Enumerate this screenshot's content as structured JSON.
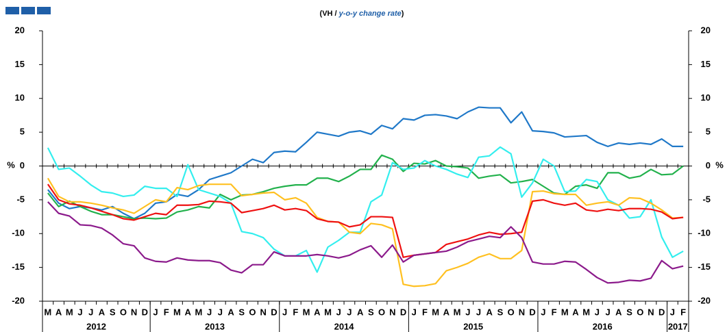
{
  "chart_data": {
    "type": "line",
    "title_parts": [
      "(VH / ",
      "y-o-y change rate",
      ")"
    ],
    "ylabel": "%",
    "y2label": "%",
    "category_groups": [
      {
        "label": "2012",
        "categories": [
          "M",
          "A",
          "M",
          "J",
          "J",
          "A",
          "S",
          "O",
          "N",
          "D"
        ]
      },
      {
        "label": "2013",
        "categories": [
          "J",
          "F",
          "M",
          "A",
          "M",
          "J",
          "J",
          "A",
          "S",
          "O",
          "N",
          "D"
        ]
      },
      {
        "label": "2014",
        "categories": [
          "J",
          "F",
          "M",
          "A",
          "M",
          "J",
          "J",
          "A",
          "S",
          "O",
          "N",
          "D"
        ]
      },
      {
        "label": "2015",
        "categories": [
          "J",
          "F",
          "M",
          "A",
          "M",
          "J",
          "J",
          "A",
          "S",
          "O",
          "N",
          "D"
        ]
      },
      {
        "label": "2016",
        "categories": [
          "J",
          "F",
          "M",
          "A",
          "M",
          "J",
          "J",
          "A",
          "S",
          "O",
          "N",
          "D"
        ]
      },
      {
        "label": "2017",
        "categories": [
          "J",
          "F"
        ]
      }
    ],
    "ylim": [
      -20,
      20
    ],
    "yticks": [
      -20,
      -15,
      -10,
      -5,
      0,
      5,
      10,
      15,
      20
    ],
    "y2lim": [
      -20,
      20
    ],
    "y2ticks": [
      -20,
      -15,
      -10,
      -5,
      0,
      5,
      10,
      15,
      20
    ],
    "series": [
      {
        "color": "#1f78c8",
        "values": [
          -3.5,
          -5.5,
          -6.3,
          -6.0,
          -6.2,
          -6.5,
          -6.0,
          -7.0,
          -7.8,
          -7.0,
          -5.5,
          -5.3,
          -4.2,
          -4.5,
          -3.5,
          -2.0,
          -1.5,
          -1.0,
          0.0,
          1.0,
          0.5,
          2.0,
          2.2,
          2.1,
          3.5,
          5.0,
          4.7,
          4.4,
          5.0,
          5.2,
          4.7,
          6.0,
          5.5,
          7.0,
          6.8,
          7.5,
          7.6,
          7.4,
          7.0,
          8.0,
          8.7,
          8.6,
          8.6,
          6.4,
          8.0,
          5.2,
          5.1,
          4.9,
          4.3,
          4.4,
          4.5,
          3.5,
          2.9,
          3.4,
          3.2,
          3.4,
          3.2,
          4.0,
          2.9,
          2.9
        ]
      },
      {
        "color": "#22b14c",
        "values": [
          -4.0,
          -6.0,
          -5.2,
          -6.0,
          -6.7,
          -7.2,
          -7.2,
          -7.5,
          -7.8,
          -7.7,
          -7.8,
          -7.7,
          -6.8,
          -6.5,
          -6.0,
          -6.2,
          -4.2,
          -5.0,
          -4.3,
          -4.2,
          -3.8,
          -3.3,
          -3.0,
          -2.8,
          -2.8,
          -1.8,
          -1.8,
          -2.3,
          -1.5,
          -0.5,
          -0.5,
          1.6,
          1.0,
          -0.8,
          0.4,
          0.3,
          0.8,
          0.0,
          -0.1,
          -0.3,
          -1.8,
          -1.5,
          -1.3,
          -2.5,
          -2.3,
          -2.0,
          -3.0,
          -4.0,
          -4.2,
          -3.0,
          -2.8,
          -3.3,
          -1.0,
          -1.0,
          -1.8,
          -1.5,
          -0.5,
          -1.3,
          -1.2,
          0.0
        ]
      },
      {
        "color": "#33eeee",
        "values": [
          2.7,
          -0.5,
          -0.3,
          -1.5,
          -2.8,
          -3.8,
          -4.0,
          -4.5,
          -4.3,
          -3.0,
          -3.3,
          -3.3,
          -4.5,
          0.2,
          -3.5,
          -4.0,
          -4.5,
          -5.5,
          -9.7,
          -10.0,
          -10.6,
          -12.3,
          -13.3,
          -13.3,
          -12.5,
          -15.7,
          -12.0,
          -11.0,
          -9.8,
          -9.8,
          -5.3,
          -4.3,
          0.5,
          -0.5,
          -0.3,
          0.8,
          0.0,
          -0.5,
          -1.2,
          -1.7,
          1.3,
          1.5,
          2.8,
          1.8,
          -4.6,
          -2.5,
          1.0,
          0.0,
          -3.8,
          -3.7,
          -2.0,
          -2.3,
          -5.0,
          -5.8,
          -7.7,
          -7.5,
          -5.0,
          -10.5,
          -13.5,
          -12.6
        ]
      },
      {
        "color": "#ffc020",
        "values": [
          -1.8,
          -4.5,
          -5.3,
          -5.3,
          -5.5,
          -5.8,
          -6.2,
          -6.5,
          -7.0,
          -6.0,
          -5.0,
          -5.3,
          -3.2,
          -3.5,
          -2.9,
          -2.7,
          -2.7,
          -2.7,
          -4.4,
          -4.2,
          -4.0,
          -3.9,
          -5.0,
          -4.7,
          -5.5,
          -7.6,
          -8.2,
          -8.3,
          -9.8,
          -10.0,
          -8.5,
          -8.7,
          -9.3,
          -17.5,
          -17.8,
          -17.7,
          -17.4,
          -15.5,
          -15.0,
          -14.4,
          -13.5,
          -13.0,
          -13.7,
          -13.7,
          -12.5,
          -3.8,
          -3.7,
          -4.1,
          -4.2,
          -4.2,
          -5.8,
          -5.5,
          -5.3,
          -5.8,
          -4.7,
          -4.8,
          -5.5,
          -6.5,
          -7.7,
          -7.6
        ]
      },
      {
        "color": "#ee1111",
        "values": [
          -2.7,
          -5.0,
          -5.6,
          -5.8,
          -6.2,
          -6.7,
          -7.2,
          -7.8,
          -8.0,
          -7.5,
          -7.0,
          -7.2,
          -5.8,
          -5.8,
          -5.7,
          -5.2,
          -5.3,
          -5.5,
          -6.9,
          -6.6,
          -6.3,
          -5.8,
          -6.5,
          -6.3,
          -6.6,
          -7.8,
          -8.2,
          -8.3,
          -9.0,
          -8.7,
          -7.5,
          -7.5,
          -7.6,
          -13.5,
          -13.2,
          -13.0,
          -12.8,
          -11.6,
          -11.2,
          -10.8,
          -10.2,
          -9.8,
          -10.1,
          -10.0,
          -9.8,
          -5.2,
          -5.0,
          -5.5,
          -5.8,
          -5.5,
          -6.5,
          -6.7,
          -6.4,
          -6.6,
          -6.3,
          -6.3,
          -6.4,
          -6.8,
          -7.8,
          -7.6
        ]
      },
      {
        "color": "#8b1a8b",
        "values": [
          -5.3,
          -7.0,
          -7.4,
          -8.7,
          -8.8,
          -9.2,
          -10.2,
          -11.5,
          -11.8,
          -13.6,
          -14.1,
          -14.2,
          -13.6,
          -13.9,
          -14.0,
          -14.0,
          -14.3,
          -15.4,
          -15.8,
          -14.6,
          -14.6,
          -12.7,
          -13.3,
          -13.3,
          -13.3,
          -13.1,
          -13.3,
          -13.6,
          -13.2,
          -12.4,
          -11.8,
          -13.5,
          -11.7,
          -14.2,
          -13.2,
          -13.0,
          -12.8,
          -12.6,
          -12.0,
          -11.2,
          -10.8,
          -10.4,
          -10.6,
          -9.0,
          -10.6,
          -14.2,
          -14.5,
          -14.5,
          -14.1,
          -14.2,
          -15.3,
          -16.5,
          -17.3,
          -17.2,
          -16.9,
          -17.0,
          -16.6,
          -14.0,
          -15.2,
          -14.8
        ]
      }
    ]
  }
}
